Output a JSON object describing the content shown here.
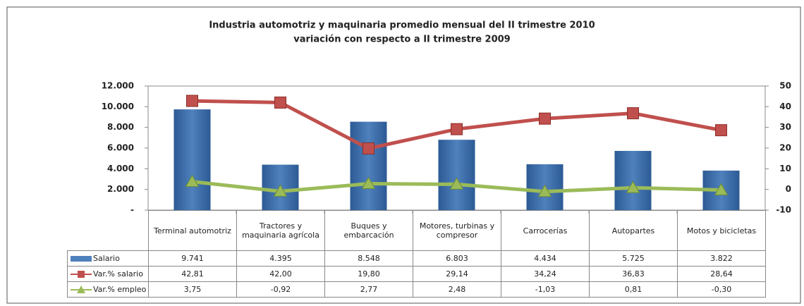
{
  "chart_data": {
    "type": "bar",
    "title": "Industria automotriz y maquinaria  promedio mensual del II trimestre 2010",
    "subtitle": "variación con respecto a II trimestre 2009",
    "categories": [
      "Terminal automotriz",
      "Tractores y maquinaria agrícola",
      "Buques y embarcación",
      "Motores, turbinas y compresor",
      "Carrocerías",
      "Autopartes",
      "Motos y bicicletas"
    ],
    "series": [
      {
        "name": "Salario",
        "type": "bar",
        "color": "#4f81bd",
        "values": [
          9741,
          4395,
          8548,
          6803,
          4434,
          5725,
          3822
        ],
        "value_labels": [
          "9.741",
          "4.395",
          "8.548",
          "6.803",
          "4.434",
          "5.725",
          "3.822"
        ]
      },
      {
        "name": "Var.% salario",
        "type": "line",
        "axis": "y2",
        "color": "#c0504d",
        "values": [
          42.81,
          42.0,
          19.8,
          29.14,
          34.24,
          36.83,
          28.64
        ],
        "value_labels": [
          "42,81",
          "42,00",
          "19,80",
          "29,14",
          "34,24",
          "36,83",
          "28,64"
        ]
      },
      {
        "name": "Var.% empleo",
        "type": "line",
        "axis": "y2",
        "color": "#9bbb59",
        "values": [
          3.75,
          -0.92,
          2.77,
          2.48,
          -1.03,
          0.81,
          -0.3
        ],
        "value_labels": [
          "3,75",
          "-0,92",
          "2,77",
          "2,48",
          "-1,03",
          "0,81",
          "-0,30"
        ]
      }
    ],
    "ylim": [
      0,
      12000
    ],
    "yticks": [
      {
        "value": 0,
        "label": "-"
      },
      {
        "value": 2000,
        "label": "2.000"
      },
      {
        "value": 4000,
        "label": "4.000"
      },
      {
        "value": 6000,
        "label": "6.000"
      },
      {
        "value": 8000,
        "label": "8.000"
      },
      {
        "value": 10000,
        "label": "10.000"
      },
      {
        "value": 12000,
        "label": "12.000"
      }
    ],
    "y2lim": [
      -10,
      50
    ],
    "y2ticks": [
      -10,
      0,
      10,
      20,
      30,
      40,
      50
    ],
    "grid": false
  }
}
